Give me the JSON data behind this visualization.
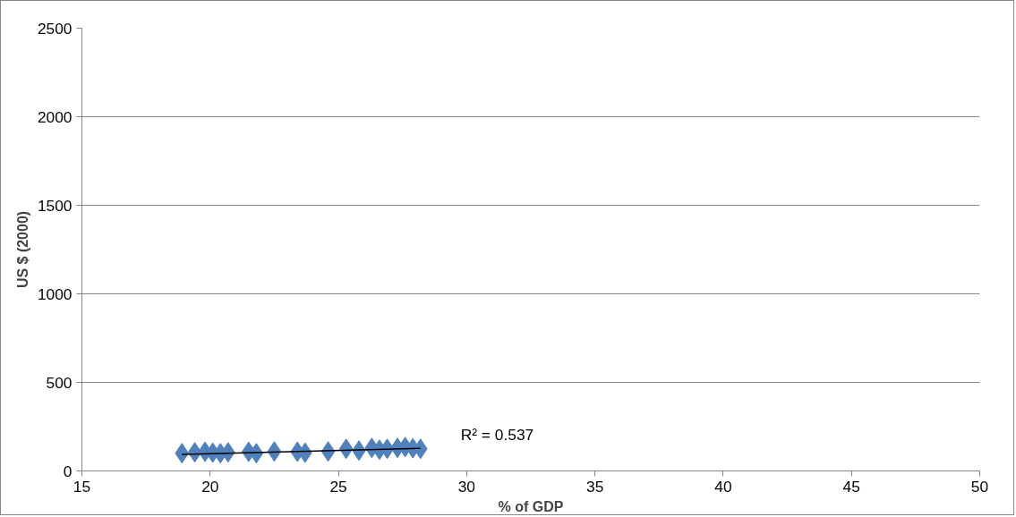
{
  "chart_data": {
    "type": "scatter",
    "xlabel": "% of GDP",
    "ylabel": "US $ (2000)",
    "grid": "y",
    "xlim": [
      15,
      50
    ],
    "xticks": [
      15,
      20,
      25,
      30,
      35,
      40,
      45,
      50
    ],
    "ylim": [
      0,
      2500
    ],
    "yticks": [
      0,
      500,
      1000,
      1500,
      2000,
      2500
    ],
    "series": [
      {
        "color": "#4f81bd",
        "marker": "diamond",
        "x": [
          18.9,
          19.4,
          19.8,
          20.1,
          20.4,
          20.7,
          21.5,
          21.8,
          22.5,
          23.4,
          23.7,
          24.6,
          25.3,
          25.8,
          26.3,
          26.6,
          26.9,
          27.3,
          27.6,
          27.9,
          28.2
        ],
        "values": [
          100,
          105,
          108,
          103,
          100,
          105,
          108,
          100,
          110,
          108,
          103,
          110,
          125,
          115,
          130,
          120,
          125,
          130,
          135,
          128,
          125
        ]
      },
      {
        "type": "line",
        "marker": "none",
        "color": "#000000",
        "x": [
          18.9,
          28.2
        ],
        "values": [
          93,
          127
        ]
      }
    ],
    "annotations": [
      "R² = 0.537"
    ]
  }
}
